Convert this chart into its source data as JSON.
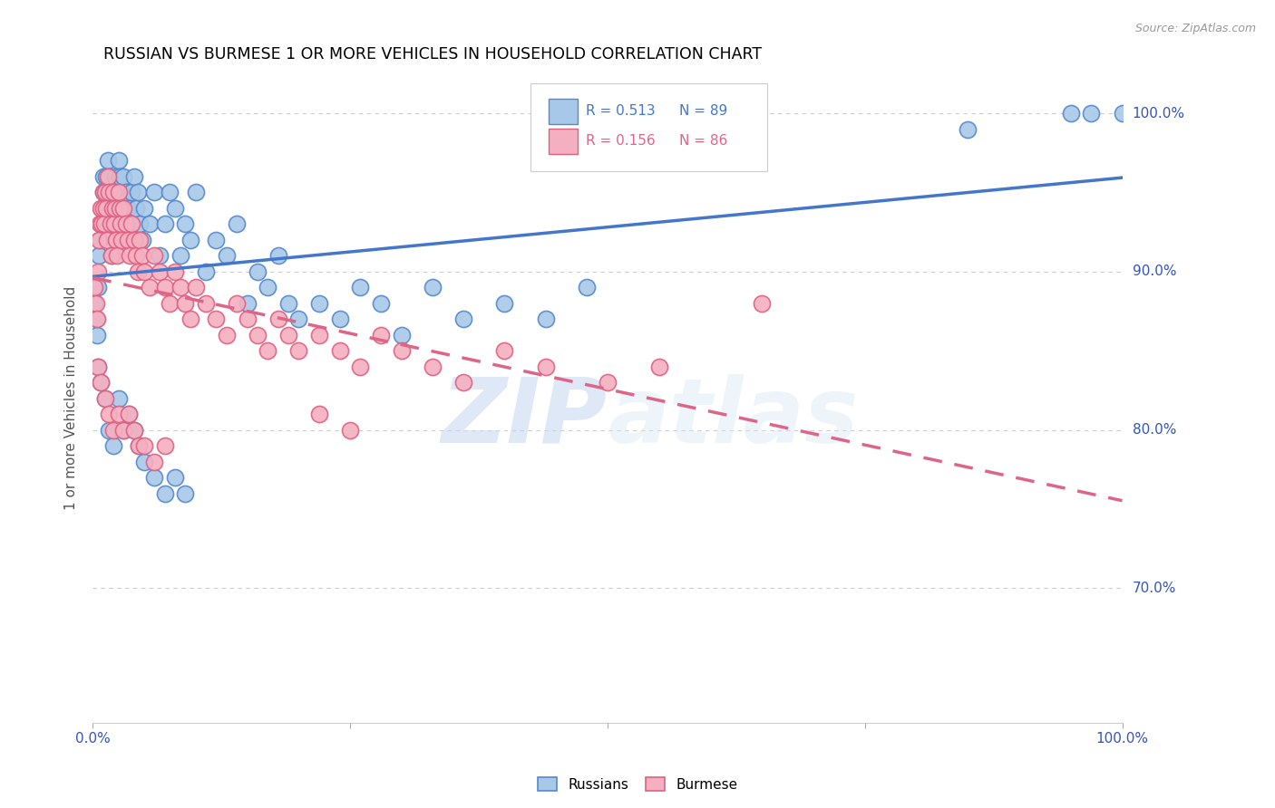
{
  "title": "RUSSIAN VS BURMESE 1 OR MORE VEHICLES IN HOUSEHOLD CORRELATION CHART",
  "source": "Source: ZipAtlas.com",
  "ylabel": "1 or more Vehicles in Household",
  "ytick_labels": [
    "100.0%",
    "90.0%",
    "80.0%",
    "70.0%"
  ],
  "ytick_values": [
    1.0,
    0.9,
    0.8,
    0.7
  ],
  "xlim": [
    0.0,
    1.0
  ],
  "ylim": [
    0.615,
    1.025
  ],
  "russian_R": 0.513,
  "russian_N": 89,
  "burmese_R": 0.156,
  "burmese_N": 86,
  "russian_color": "#a8c8e8",
  "burmese_color": "#f4b0c0",
  "russian_edge_color": "#5588cc",
  "burmese_edge_color": "#e06080",
  "russian_line_color": "#4477cc",
  "burmese_line_color": "#dd6688",
  "watermark_zip": "ZIP",
  "watermark_atlas": "atlas",
  "russian_x": [
    0.002,
    0.003,
    0.004,
    0.005,
    0.006,
    0.007,
    0.008,
    0.009,
    0.01,
    0.01,
    0.011,
    0.012,
    0.013,
    0.014,
    0.015,
    0.015,
    0.016,
    0.017,
    0.018,
    0.019,
    0.02,
    0.021,
    0.022,
    0.023,
    0.024,
    0.025,
    0.026,
    0.027,
    0.028,
    0.03,
    0.032,
    0.034,
    0.036,
    0.038,
    0.04,
    0.042,
    0.044,
    0.046,
    0.048,
    0.05,
    0.055,
    0.06,
    0.065,
    0.07,
    0.075,
    0.08,
    0.085,
    0.09,
    0.095,
    0.1,
    0.11,
    0.12,
    0.13,
    0.14,
    0.15,
    0.16,
    0.17,
    0.18,
    0.19,
    0.2,
    0.22,
    0.24,
    0.26,
    0.28,
    0.3,
    0.33,
    0.36,
    0.4,
    0.44,
    0.48,
    0.005,
    0.008,
    0.012,
    0.016,
    0.02,
    0.025,
    0.03,
    0.035,
    0.04,
    0.045,
    0.05,
    0.06,
    0.07,
    0.08,
    0.09,
    0.85,
    0.95,
    0.97,
    1.0
  ],
  "russian_y": [
    0.88,
    0.87,
    0.86,
    0.89,
    0.91,
    0.92,
    0.93,
    0.94,
    0.95,
    0.96,
    0.94,
    0.95,
    0.96,
    0.93,
    0.95,
    0.97,
    0.96,
    0.95,
    0.91,
    0.93,
    0.95,
    0.94,
    0.96,
    0.95,
    0.93,
    0.97,
    0.96,
    0.95,
    0.94,
    0.96,
    0.95,
    0.94,
    0.93,
    0.95,
    0.96,
    0.94,
    0.95,
    0.93,
    0.92,
    0.94,
    0.93,
    0.95,
    0.91,
    0.93,
    0.95,
    0.94,
    0.91,
    0.93,
    0.92,
    0.95,
    0.9,
    0.92,
    0.91,
    0.93,
    0.88,
    0.9,
    0.89,
    0.91,
    0.88,
    0.87,
    0.88,
    0.87,
    0.89,
    0.88,
    0.86,
    0.89,
    0.87,
    0.88,
    0.87,
    0.89,
    0.84,
    0.83,
    0.82,
    0.8,
    0.79,
    0.82,
    0.8,
    0.81,
    0.8,
    0.79,
    0.78,
    0.77,
    0.76,
    0.77,
    0.76,
    0.99,
    1.0,
    1.0,
    1.0
  ],
  "burmese_x": [
    0.002,
    0.003,
    0.004,
    0.005,
    0.006,
    0.007,
    0.008,
    0.009,
    0.01,
    0.01,
    0.011,
    0.012,
    0.013,
    0.014,
    0.015,
    0.016,
    0.017,
    0.018,
    0.019,
    0.02,
    0.021,
    0.022,
    0.023,
    0.024,
    0.025,
    0.026,
    0.027,
    0.028,
    0.03,
    0.032,
    0.034,
    0.036,
    0.038,
    0.04,
    0.042,
    0.044,
    0.046,
    0.048,
    0.05,
    0.055,
    0.06,
    0.065,
    0.07,
    0.075,
    0.08,
    0.085,
    0.09,
    0.095,
    0.1,
    0.11,
    0.12,
    0.13,
    0.14,
    0.15,
    0.16,
    0.17,
    0.18,
    0.19,
    0.2,
    0.22,
    0.24,
    0.26,
    0.28,
    0.3,
    0.33,
    0.36,
    0.4,
    0.44,
    0.5,
    0.55,
    0.005,
    0.008,
    0.012,
    0.016,
    0.02,
    0.025,
    0.03,
    0.035,
    0.04,
    0.045,
    0.05,
    0.06,
    0.07,
    0.22,
    0.25,
    0.65
  ],
  "burmese_y": [
    0.89,
    0.88,
    0.87,
    0.9,
    0.92,
    0.93,
    0.94,
    0.93,
    0.95,
    0.94,
    0.93,
    0.95,
    0.94,
    0.92,
    0.96,
    0.95,
    0.93,
    0.91,
    0.94,
    0.95,
    0.93,
    0.94,
    0.92,
    0.91,
    0.95,
    0.94,
    0.93,
    0.92,
    0.94,
    0.93,
    0.92,
    0.91,
    0.93,
    0.92,
    0.91,
    0.9,
    0.92,
    0.91,
    0.9,
    0.89,
    0.91,
    0.9,
    0.89,
    0.88,
    0.9,
    0.89,
    0.88,
    0.87,
    0.89,
    0.88,
    0.87,
    0.86,
    0.88,
    0.87,
    0.86,
    0.85,
    0.87,
    0.86,
    0.85,
    0.86,
    0.85,
    0.84,
    0.86,
    0.85,
    0.84,
    0.83,
    0.85,
    0.84,
    0.83,
    0.84,
    0.84,
    0.83,
    0.82,
    0.81,
    0.8,
    0.81,
    0.8,
    0.81,
    0.8,
    0.79,
    0.79,
    0.78,
    0.79,
    0.81,
    0.8,
    0.88
  ],
  "legend_ru_label": "R = 0.513",
  "legend_ru_n": "N = 89",
  "legend_bu_label": "R = 0.156",
  "legend_bu_n": "N = 86"
}
